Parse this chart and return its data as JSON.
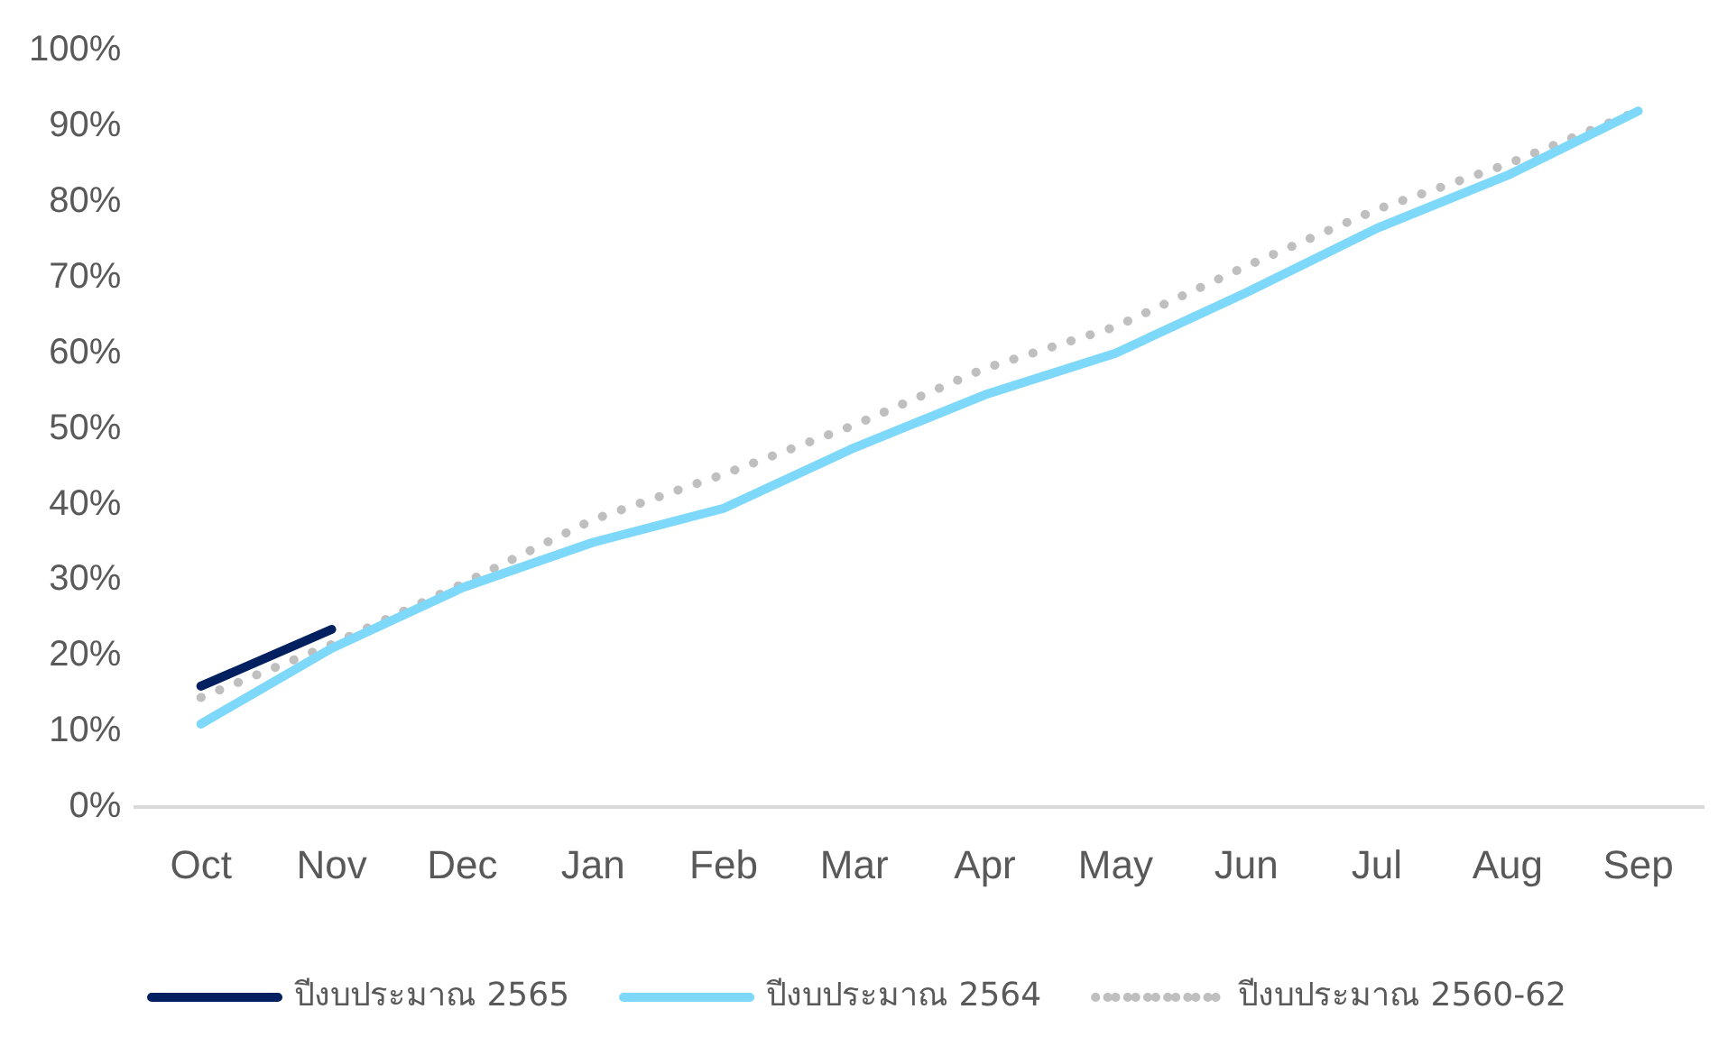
{
  "chart_data": {
    "type": "line",
    "categories": [
      "Oct",
      "Nov",
      "Dec",
      "Jan",
      "Feb",
      "Mar",
      "Apr",
      "May",
      "Jun",
      "Jul",
      "Aug",
      "Sep"
    ],
    "series": [
      {
        "name": "ปีงบประมาณ 2565",
        "color": "#002060",
        "line_style": "solid",
        "values": [
          16,
          23.5,
          null,
          null,
          null,
          null,
          null,
          null,
          null,
          null,
          null,
          null
        ]
      },
      {
        "name": "ปีงบประมาณ 2564",
        "color": "#7dd8fa",
        "line_style": "solid",
        "values": [
          11,
          21,
          29,
          35,
          39.5,
          47.5,
          54.5,
          60,
          68,
          76.5,
          83.5,
          92
        ]
      },
      {
        "name": "ปีงบประมาณ 2560-62",
        "color": "#bfbfbf",
        "line_style": "dotted",
        "values": [
          14.5,
          21.5,
          29.5,
          38,
          44,
          50.5,
          58,
          63.5,
          71.5,
          79,
          85,
          92
        ]
      }
    ],
    "ylim": [
      0,
      100
    ],
    "yticks": [
      {
        "value": 0,
        "label": "0%"
      },
      {
        "value": 10,
        "label": "10%"
      },
      {
        "value": 20,
        "label": "20%"
      },
      {
        "value": 30,
        "label": "30%"
      },
      {
        "value": 40,
        "label": "40%"
      },
      {
        "value": 50,
        "label": "50%"
      },
      {
        "value": 60,
        "label": "60%"
      },
      {
        "value": 70,
        "label": "70%"
      },
      {
        "value": 80,
        "label": "80%"
      },
      {
        "value": 90,
        "label": "90%"
      },
      {
        "value": 100,
        "label": "100%"
      }
    ],
    "grid": false,
    "legend": "bottom",
    "marker": "none"
  }
}
